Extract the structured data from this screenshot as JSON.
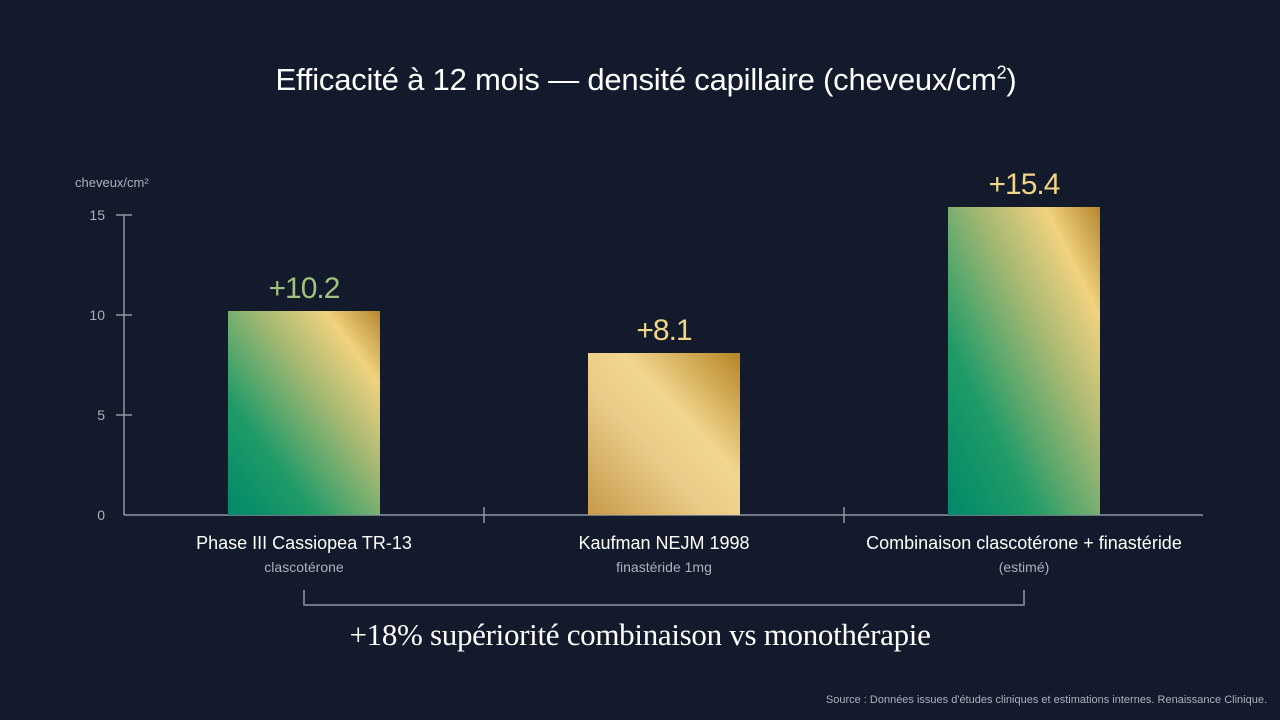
{
  "title_main": "Efficacité à 12 mois — densité capillaire (cheveux/cm",
  "title_sup": "2",
  "title_end": ")",
  "callout": "+18% supériorité combinaison vs monothérapie",
  "source": "Source : Données issues d'études cliniques et estimations internes. Renaissance Clinique.",
  "colors": {
    "background": "#131a2b",
    "green": "#019363",
    "gold": "#c9a14c",
    "gold_light": "#f6d98a",
    "value_green": "#9cc47e",
    "value_gold": "#f0d487"
  },
  "chart_data": {
    "type": "bar",
    "title": "Efficacité à 12 mois — densité capillaire (cheveux/cm²)",
    "ylabel": "cheveux/cm²",
    "ylim": [
      0,
      15
    ],
    "yticks": [
      0,
      5,
      10,
      15
    ],
    "grid": false,
    "categories": [
      "Phase III Cassiopea TR-13",
      "Kaufman NEJM 1998",
      "Combinaison clascotérone + finastéride"
    ],
    "subtitles": [
      "clascotérone",
      "finastéride 1mg",
      "(estimé)"
    ],
    "values": [
      10.2,
      8.1,
      15.4
    ],
    "value_labels": [
      "+10.2",
      "+8.1",
      "+15.4"
    ],
    "bar_styles": [
      "green-gold",
      "gold",
      "green-gold"
    ]
  }
}
